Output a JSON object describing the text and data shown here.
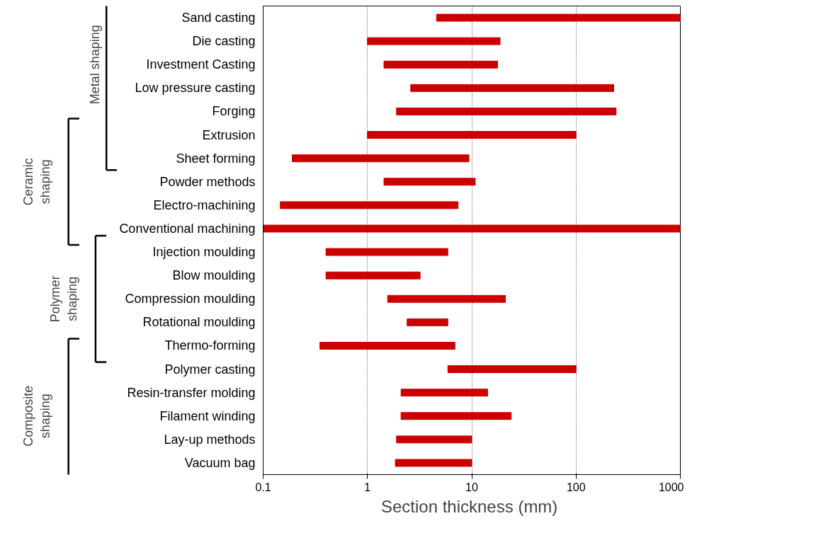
{
  "chart_data": {
    "type": "bar",
    "orientation": "horizontal",
    "log": "x",
    "xlabel": "Section thickness  (mm)",
    "categories": [
      "Sand casting",
      "Die casting",
      "Investment Casting",
      "Low pressure casting",
      "Forging",
      "Extrusion",
      "Sheet forming",
      "Powder methods",
      "Electro-machining",
      "Conventional machining",
      "Injection moulding",
      "Blow moulding",
      "Compression moulding",
      "Rotational moulding",
      "Thermo-forming",
      "Polymer casting",
      "Resin-transfer molding",
      "Filament winding",
      "Lay-up methods",
      "Vacuum bag"
    ],
    "base": [
      4.6,
      1,
      1.44,
      2.6,
      1.9,
      1,
      0.19,
      1.44,
      0.146,
      0.1,
      0.4,
      0.4,
      1.56,
      2.4,
      0.35,
      5.9,
      2.1,
      2.1,
      1.9,
      1.85
    ],
    "values": [
      995.4,
      17.7,
      16.26,
      227.4,
      240.1,
      99,
      9.21,
      9.36,
      7.254,
      999.9,
      5.5,
      2.8,
      19.44,
      3.5,
      6.55,
      94.1,
      12.1,
      21.8,
      8.1,
      8.15
    ],
    "color": "#cc0000",
    "xlim": [
      0.1,
      1000
    ],
    "xticks": [
      0.1,
      1,
      10,
      100,
      1000
    ],
    "grid": "x",
    "annotations": [
      "Metal shaping",
      "Ceramic\nshaping",
      "Polymer\nshaping",
      "Composite\nshaping"
    ]
  }
}
